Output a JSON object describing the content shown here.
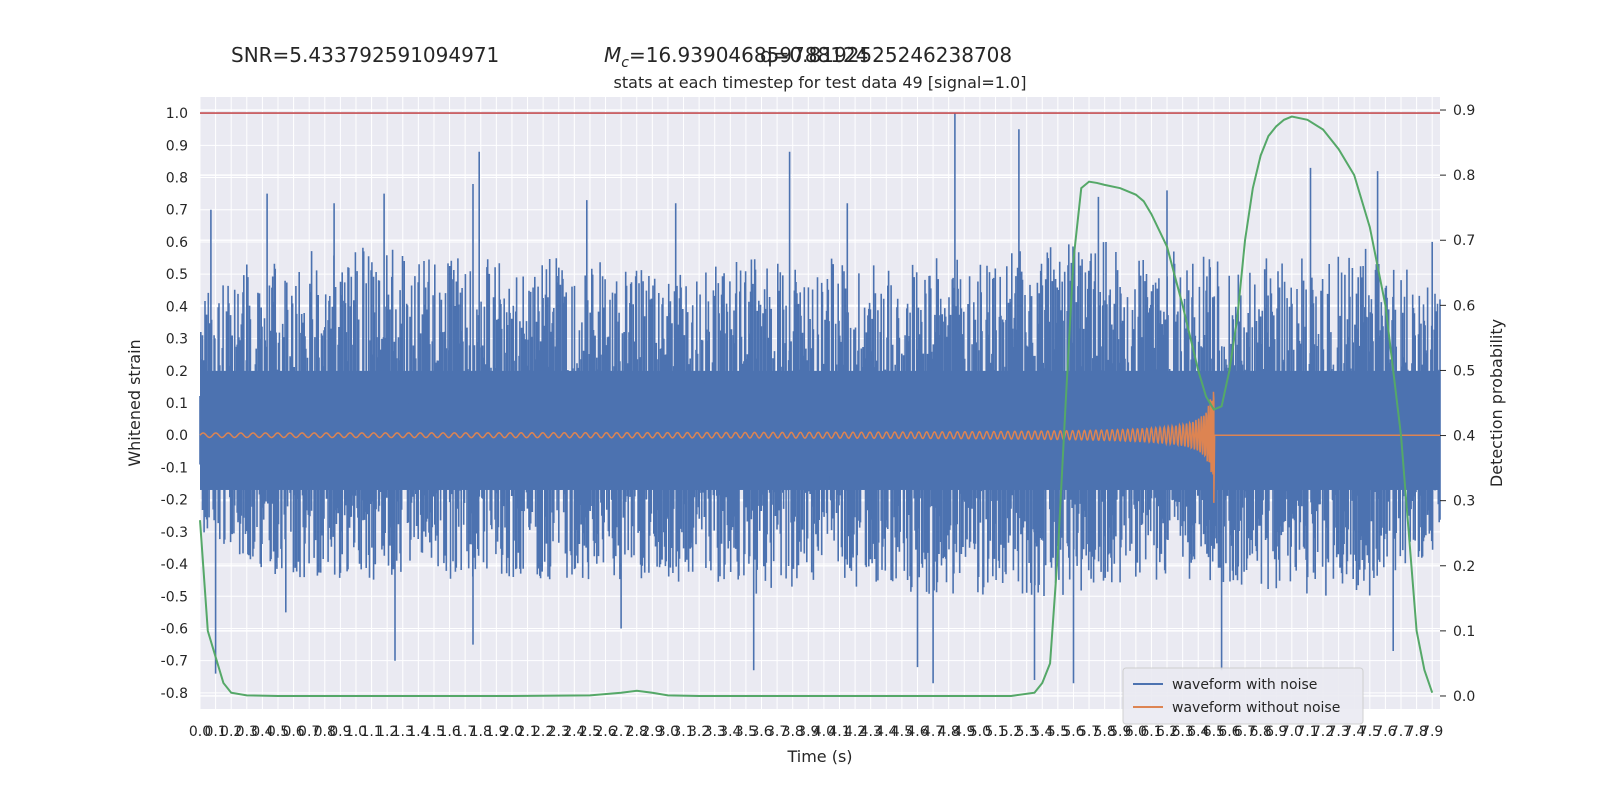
{
  "chart_data": {
    "type": "line",
    "title": "stats at each timestep for test data 49 [signal=1.0]",
    "annotations": {
      "snr": "SNR=5.433792591094971",
      "mc_prefix": "M",
      "mc_sub": "c",
      "mc_value": "=16.939046859788124",
      "q_value": "q=0.8192525246238708"
    },
    "xlabel": "Time (s)",
    "ylabel_left": "Whitened strain",
    "ylabel_right": "Detection probability",
    "xlim": [
      0,
      7.95
    ],
    "ylim_left": [
      -0.85,
      1.05
    ],
    "ylim_right": [
      -0.02,
      0.92
    ],
    "x_ticks": [
      "0.0",
      "0.1",
      "0.2",
      "0.3",
      "0.4",
      "0.5",
      "0.6",
      "0.7",
      "0.8",
      "0.9",
      "1.0",
      "1.1",
      "1.2",
      "1.3",
      "1.4",
      "1.5",
      "1.6",
      "1.7",
      "1.8",
      "1.9",
      "2.0",
      "2.1",
      "2.2",
      "2.3",
      "2.4",
      "2.5",
      "2.6",
      "2.7",
      "2.8",
      "2.9",
      "3.0",
      "3.1",
      "3.2",
      "3.3",
      "3.4",
      "3.5",
      "3.6",
      "3.7",
      "3.8",
      "3.9",
      "4.0",
      "4.1",
      "4.2",
      "4.3",
      "4.4",
      "4.5",
      "4.6",
      "4.7",
      "4.8",
      "4.9",
      "5.0",
      "5.1",
      "5.2",
      "5.3",
      "5.4",
      "5.5",
      "5.6",
      "5.7",
      "5.8",
      "5.9",
      "6.0",
      "6.1",
      "6.2",
      "6.3",
      "6.4",
      "6.5",
      "6.6",
      "6.7",
      "6.8",
      "6.9",
      "7.0",
      "7.1",
      "7.2",
      "7.3",
      "7.4",
      "7.5",
      "7.6",
      "7.7",
      "7.8",
      "7.9"
    ],
    "y_ticks_left": [
      "-0.8",
      "-0.7",
      "-0.6",
      "-0.5",
      "-0.4",
      "-0.3",
      "-0.2",
      "-0.1",
      "0.0",
      "0.1",
      "0.2",
      "0.3",
      "0.4",
      "0.5",
      "0.6",
      "0.7",
      "0.8",
      "0.9",
      "1.0"
    ],
    "y_ticks_right": [
      "0.0",
      "0.1",
      "0.2",
      "0.3",
      "0.4",
      "0.5",
      "0.6",
      "0.7",
      "0.8",
      "0.9"
    ],
    "threshold_line": {
      "y": 1.0,
      "color": "#c44e52"
    },
    "legend": {
      "placement": "lower-right",
      "entries": [
        "waveform with noise",
        "waveform without noise"
      ]
    },
    "series": [
      {
        "name": "waveform with noise",
        "color": "#4c72b0",
        "axis": "left",
        "envelope_x": [
          0.0,
          0.5,
          1.0,
          1.5,
          2.0,
          2.5,
          3.0,
          3.5,
          4.0,
          4.5,
          5.0,
          5.5,
          6.0,
          6.5,
          7.0,
          7.5,
          7.95
        ],
        "envelope_upper": [
          0.45,
          0.55,
          0.6,
          0.55,
          0.55,
          0.55,
          0.5,
          0.55,
          0.55,
          0.55,
          0.55,
          0.6,
          0.6,
          0.55,
          0.55,
          0.6,
          0.45
        ],
        "envelope_lower": [
          -0.3,
          -0.45,
          -0.45,
          -0.45,
          -0.45,
          -0.45,
          -0.45,
          -0.5,
          -0.45,
          -0.5,
          -0.5,
          -0.5,
          -0.45,
          -0.45,
          -0.5,
          -0.5,
          -0.35
        ],
        "peaks": [
          {
            "x": 0.07,
            "y": 0.7
          },
          {
            "x": 0.3,
            "y": 0.53
          },
          {
            "x": 0.43,
            "y": 0.75
          },
          {
            "x": 0.86,
            "y": 0.72
          },
          {
            "x": 1.18,
            "y": 0.75
          },
          {
            "x": 1.75,
            "y": 0.78
          },
          {
            "x": 1.79,
            "y": 0.88
          },
          {
            "x": 2.48,
            "y": 0.73
          },
          {
            "x": 3.05,
            "y": 0.72
          },
          {
            "x": 3.78,
            "y": 0.88
          },
          {
            "x": 4.15,
            "y": 0.72
          },
          {
            "x": 4.84,
            "y": 1.0
          },
          {
            "x": 5.25,
            "y": 0.95
          },
          {
            "x": 5.76,
            "y": 0.74
          },
          {
            "x": 6.2,
            "y": 0.76
          },
          {
            "x": 7.12,
            "y": 0.83
          },
          {
            "x": 7.55,
            "y": 0.82
          },
          {
            "x": 7.9,
            "y": 0.6
          }
        ],
        "troughs": [
          {
            "x": 0.1,
            "y": -0.74
          },
          {
            "x": 0.55,
            "y": -0.55
          },
          {
            "x": 1.25,
            "y": -0.7
          },
          {
            "x": 1.75,
            "y": -0.65
          },
          {
            "x": 2.7,
            "y": -0.6
          },
          {
            "x": 3.55,
            "y": -0.73
          },
          {
            "x": 4.6,
            "y": -0.72
          },
          {
            "x": 4.7,
            "y": -0.77
          },
          {
            "x": 5.35,
            "y": -0.76
          },
          {
            "x": 5.6,
            "y": -0.77
          },
          {
            "x": 6.55,
            "y": -0.73
          },
          {
            "x": 7.65,
            "y": -0.67
          }
        ]
      },
      {
        "name": "waveform without noise",
        "color": "#dd8452",
        "axis": "left",
        "chirp": {
          "t_start": 0.0,
          "t_merger": 6.5,
          "amp_start": 0.005,
          "amp_peak": 0.2,
          "amp_min": -0.21,
          "cycles": 130
        }
      },
      {
        "name": "detection probability",
        "color": "#55a868",
        "axis": "right",
        "x": [
          0.0,
          0.05,
          0.1,
          0.15,
          0.2,
          0.3,
          0.5,
          1.0,
          2.0,
          2.5,
          2.7,
          2.8,
          2.9,
          3.0,
          3.2,
          4.0,
          4.5,
          5.0,
          5.2,
          5.35,
          5.4,
          5.45,
          5.5,
          5.55,
          5.6,
          5.65,
          5.7,
          5.75,
          5.8,
          5.9,
          6.0,
          6.05,
          6.1,
          6.2,
          6.3,
          6.4,
          6.45,
          6.5,
          6.55,
          6.6,
          6.65,
          6.7,
          6.75,
          6.8,
          6.85,
          6.9,
          6.95,
          7.0,
          7.1,
          7.2,
          7.3,
          7.4,
          7.5,
          7.6,
          7.7,
          7.75,
          7.8,
          7.85,
          7.9
        ],
        "y": [
          0.27,
          0.1,
          0.06,
          0.02,
          0.005,
          0.001,
          0.0,
          0.0,
          0.0,
          0.001,
          0.005,
          0.008,
          0.005,
          0.001,
          0.0,
          0.0,
          0.0,
          0.0,
          0.0,
          0.005,
          0.02,
          0.05,
          0.22,
          0.45,
          0.67,
          0.78,
          0.79,
          0.788,
          0.785,
          0.78,
          0.77,
          0.76,
          0.74,
          0.69,
          0.6,
          0.5,
          0.46,
          0.44,
          0.445,
          0.5,
          0.58,
          0.7,
          0.78,
          0.83,
          0.86,
          0.875,
          0.885,
          0.89,
          0.885,
          0.87,
          0.84,
          0.8,
          0.72,
          0.6,
          0.4,
          0.25,
          0.1,
          0.04,
          0.005
        ]
      }
    ]
  }
}
